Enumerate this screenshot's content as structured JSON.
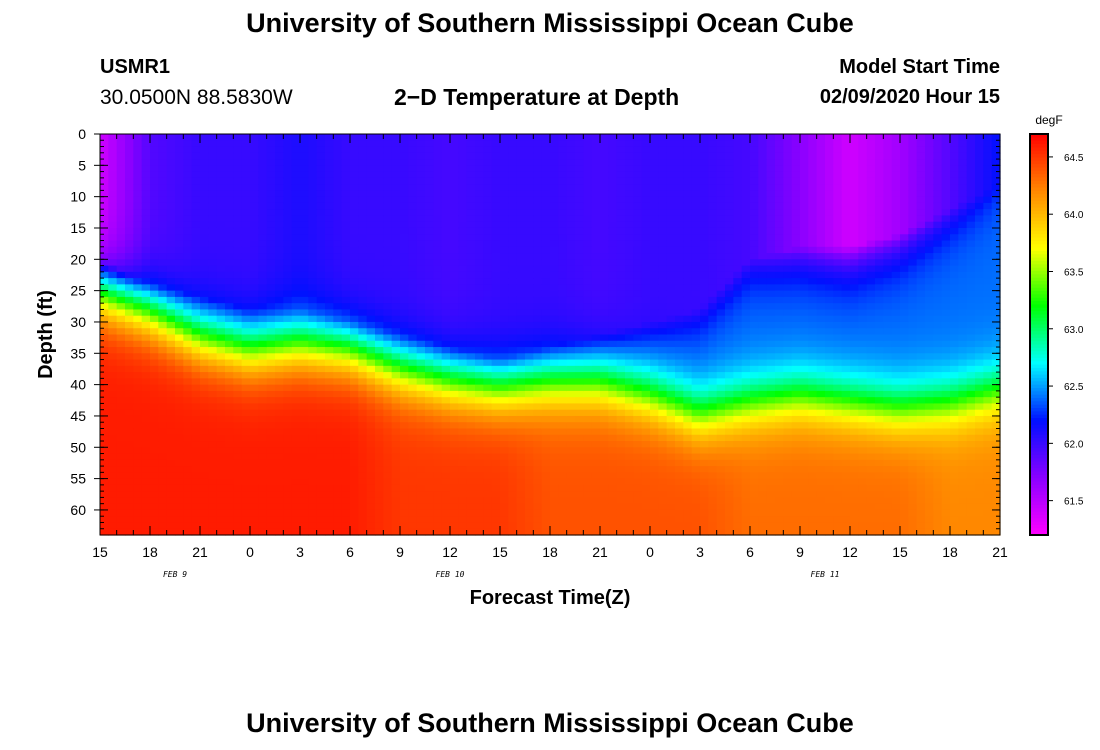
{
  "header": {
    "title": "University of Southern Mississippi Ocean Cube",
    "station_id": "USMR1",
    "station_coords": "30.0500N 88.5830W",
    "plot_title": "2−D Temperature at Depth",
    "model_start_label": "Model Start Time",
    "model_start_value": "02/09/2020 Hour 15"
  },
  "footer": {
    "title": "University of Southern Mississippi Ocean Cube"
  },
  "colors": {
    "colormap": [
      "#ff00ff",
      "#8a00ff",
      "#0010ff",
      "#00ffff",
      "#00ff00",
      "#ffff00",
      "#ff8800",
      "#ff0000"
    ]
  },
  "chart_data": {
    "type": "heatmap",
    "title": "2−D Temperature at Depth",
    "xlabel": "Forecast Time(Z)",
    "ylabel": "Depth (ft)",
    "x_tick_labels": [
      "15",
      "18",
      "21",
      "0",
      "3",
      "6",
      "9",
      "12",
      "15",
      "18",
      "21",
      "0",
      "3",
      "6",
      "9",
      "12",
      "15",
      "18",
      "21"
    ],
    "x_date_labels": [
      {
        "label": "FEB  9",
        "hour_index": 4.5
      },
      {
        "label": "FEB  10",
        "hour_index": 21
      },
      {
        "label": "FEB  11",
        "hour_index": 43.5
      }
    ],
    "x_hours_range": [
      0,
      54
    ],
    "y_tick_labels": [
      "0",
      "5",
      "10",
      "15",
      "20",
      "25",
      "30",
      "35",
      "40",
      "45",
      "50",
      "55",
      "60"
    ],
    "ylim": [
      0,
      64
    ],
    "y_inverted": true,
    "colorbar": {
      "unit": "degF",
      "range": [
        61.2,
        64.7
      ],
      "tick_labels": [
        "61.5",
        "62.0",
        "62.5",
        "63.0",
        "63.5",
        "64.0",
        "64.5"
      ],
      "tick_values": [
        61.5,
        62.0,
        62.5,
        63.0,
        63.5,
        64.0,
        64.5
      ]
    },
    "thermocline_depth_ft": {
      "hours": [
        0,
        3,
        6,
        9,
        12,
        15,
        18,
        21,
        24,
        27,
        30,
        33,
        36,
        39,
        42,
        45,
        48,
        51,
        54
      ],
      "values": [
        26,
        29,
        33,
        35,
        34,
        35,
        38,
        40,
        41,
        40,
        40,
        42,
        45,
        43,
        42,
        43,
        44,
        43,
        41
      ]
    },
    "surface_temp_degF": {
      "hours": [
        0,
        3,
        6,
        9,
        12,
        15,
        18,
        21,
        24,
        27,
        30,
        33,
        36,
        39,
        42,
        45,
        48,
        51,
        54
      ],
      "values": [
        61.4,
        61.9,
        62.0,
        62.0,
        62.1,
        62.0,
        62.0,
        61.95,
        62.0,
        62.0,
        61.95,
        62.0,
        62.0,
        61.95,
        61.7,
        61.4,
        61.6,
        61.9,
        62.2
      ]
    },
    "bottom_temp_degF": {
      "hours": [
        0,
        3,
        6,
        9,
        12,
        15,
        18,
        21,
        24,
        27,
        30,
        33,
        36,
        39,
        42,
        45,
        48,
        51,
        54
      ],
      "values": [
        64.6,
        64.6,
        64.6,
        64.6,
        64.6,
        64.6,
        64.5,
        64.5,
        64.5,
        64.4,
        64.4,
        64.4,
        64.4,
        64.3,
        64.3,
        64.3,
        64.3,
        64.2,
        64.2
      ]
    },
    "upper_mix_depth_ft": {
      "hours": [
        0,
        3,
        6,
        9,
        12,
        15,
        18,
        21,
        24,
        27,
        30,
        33,
        36,
        39,
        42,
        45,
        48,
        51,
        54
      ],
      "values": [
        20,
        24,
        26,
        28,
        28,
        30,
        32,
        34,
        36,
        34,
        32,
        30,
        28,
        20,
        18,
        18,
        16,
        12,
        8
      ]
    }
  }
}
